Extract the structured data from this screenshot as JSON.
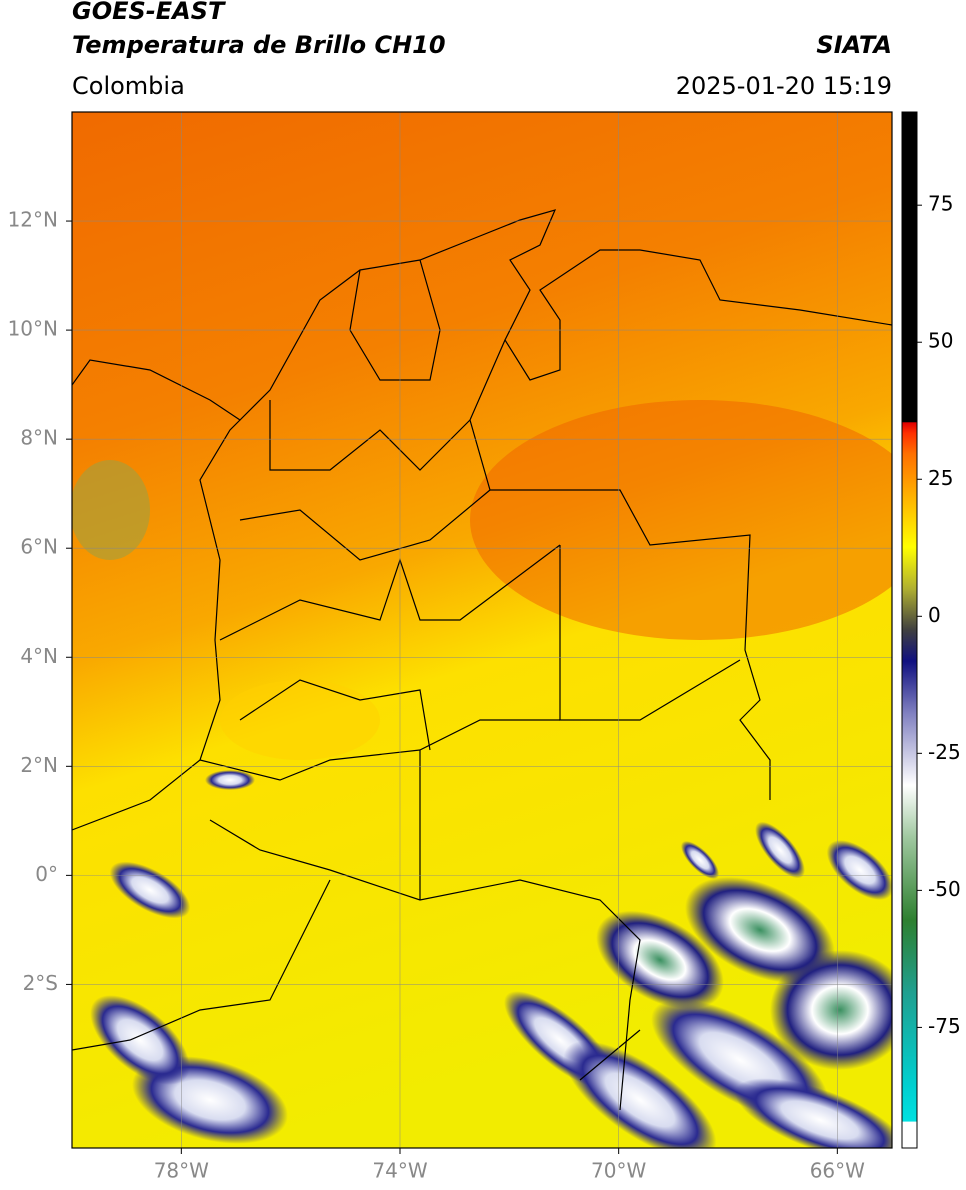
{
  "header": {
    "satellite": "GOES-EAST",
    "product": "Temperatura de Brillo CH10",
    "region": "Colombia",
    "source": "SIATA",
    "timestamp": "2025-01-20 15:19"
  },
  "chart_data": {
    "type": "map",
    "xlim": [
      -80,
      -65
    ],
    "ylim": [
      -5,
      14
    ],
    "xticks": [
      {
        "value": -78,
        "label": "78°W"
      },
      {
        "value": -74,
        "label": "74°W"
      },
      {
        "value": -70,
        "label": "70°W"
      },
      {
        "value": -66,
        "label": "66°W"
      }
    ],
    "yticks": [
      {
        "value": 12,
        "label": "12°N"
      },
      {
        "value": 10,
        "label": "10°N"
      },
      {
        "value": 8,
        "label": "8°N"
      },
      {
        "value": 6,
        "label": "6°N"
      },
      {
        "value": 4,
        "label": "4°N"
      },
      {
        "value": 2,
        "label": "2°N"
      },
      {
        "value": 0,
        "label": "0°"
      },
      {
        "value": -2,
        "label": "2°S"
      }
    ],
    "grid": true,
    "colorbar": {
      "lim": [
        -97,
        92
      ],
      "ticks": [
        75,
        50,
        25,
        0,
        -25,
        -50,
        -75
      ]
    }
  }
}
